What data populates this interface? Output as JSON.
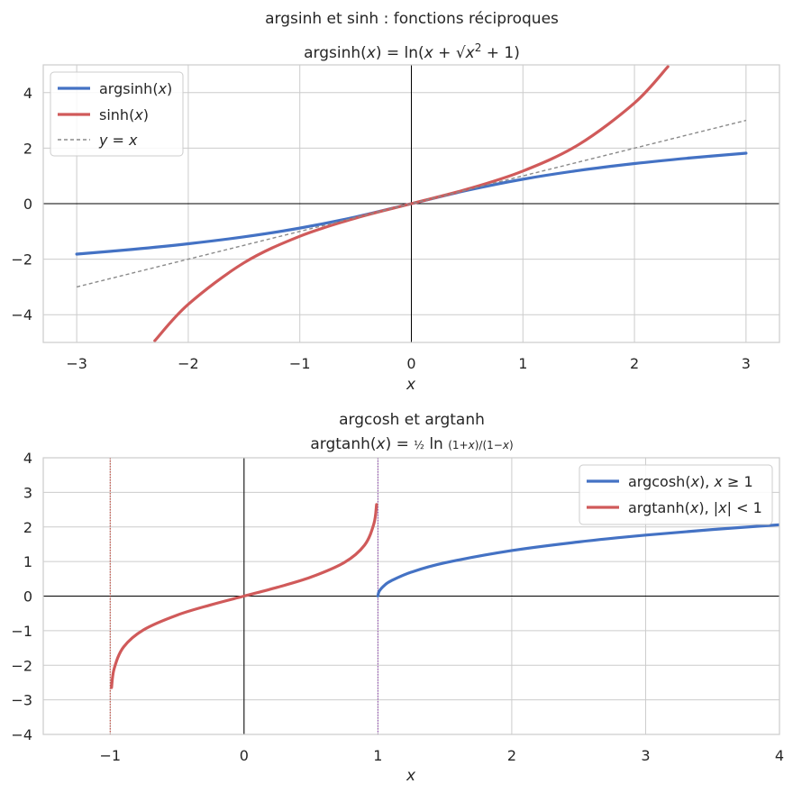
{
  "figure": {
    "suptitle": "argsinh et sinh  : fonctions réciproques"
  },
  "chart_data": [
    {
      "type": "line",
      "title": "argsinh(x) = ln(x + √(x² + 1))",
      "xlabel": "x",
      "ylabel": "",
      "xlim": [
        -3.3,
        3.3
      ],
      "ylim": [
        -5,
        5
      ],
      "xticks": [
        -3,
        -2,
        -1,
        0,
        1,
        2,
        3
      ],
      "yticks": [
        -4,
        -2,
        0,
        2,
        4
      ],
      "xtick_labels": [
        "−3",
        "−2",
        "−1",
        "0",
        "1",
        "2",
        "3"
      ],
      "ytick_labels": [
        "−4",
        "−2",
        "0",
        "2",
        "4"
      ],
      "grid": true,
      "legend": "top-left",
      "series": [
        {
          "name": "argsinh(x)",
          "color": "#4472c4",
          "style": "solid",
          "x": [
            -3,
            -2.5,
            -2,
            -1.5,
            -1,
            -0.5,
            0,
            0.5,
            1,
            1.5,
            2,
            2.5,
            3
          ],
          "y": [
            -1.818,
            -1.647,
            -1.444,
            -1.195,
            -0.881,
            -0.481,
            0,
            0.481,
            0.881,
            1.195,
            1.444,
            1.647,
            1.818
          ]
        },
        {
          "name": "sinh(x)",
          "color": "#d05a5a",
          "style": "solid",
          "x": [
            -2.3,
            -2,
            -1.5,
            -1,
            -0.5,
            0,
            0.5,
            1,
            1.5,
            2,
            2.3
          ],
          "y": [
            -4.937,
            -3.627,
            -2.129,
            -1.175,
            -0.521,
            0,
            0.521,
            1.175,
            2.129,
            3.627,
            4.937
          ]
        },
        {
          "name": "y = x",
          "color": "#8a8a8a",
          "style": "dashed",
          "x": [
            -3,
            3
          ],
          "y": [
            -3,
            3
          ]
        }
      ]
    },
    {
      "type": "line",
      "title_line1": "argcosh et argtanh",
      "title_line2": "argtanh(x) = ½ ln((1 + x)/(1 − x))",
      "xlabel": "x",
      "ylabel": "",
      "xlim": [
        -1.5,
        4
      ],
      "ylim": [
        -4,
        4
      ],
      "xticks": [
        -1,
        0,
        1,
        2,
        3,
        4
      ],
      "yticks": [
        -4,
        -3,
        -2,
        -1,
        0,
        1,
        2,
        3,
        4
      ],
      "xtick_labels": [
        "−1",
        "0",
        "1",
        "2",
        "3",
        "4"
      ],
      "ytick_labels": [
        "−4",
        "−3",
        "−2",
        "−1",
        "0",
        "1",
        "2",
        "3",
        "4"
      ],
      "grid": true,
      "legend": "top-right",
      "vlines": [
        {
          "x": -1,
          "color": "#c0392b",
          "style": "dotted"
        },
        {
          "x": 1,
          "color": "#8e44ad",
          "style": "dotted"
        }
      ],
      "series": [
        {
          "name": "argcosh(x), x ≥ 1",
          "color": "#4472c4",
          "style": "solid",
          "x": [
            1,
            1.01,
            1.05,
            1.1,
            1.25,
            1.5,
            2,
            2.5,
            3,
            3.5,
            4
          ],
          "y": [
            0,
            0.141,
            0.314,
            0.444,
            0.693,
            0.962,
            1.317,
            1.567,
            1.763,
            1.925,
            2.063
          ]
        },
        {
          "name": "argtanh(x), |x| < 1",
          "color": "#d05a5a",
          "style": "solid",
          "x": [
            -0.99,
            -0.97,
            -0.9,
            -0.75,
            -0.5,
            -0.25,
            0,
            0.25,
            0.5,
            0.75,
            0.9,
            0.97,
            0.99
          ],
          "y": [
            -2.647,
            -2.092,
            -1.472,
            -0.973,
            -0.549,
            -0.255,
            0,
            0.255,
            0.549,
            0.973,
            1.472,
            2.092,
            2.647
          ]
        }
      ]
    }
  ]
}
